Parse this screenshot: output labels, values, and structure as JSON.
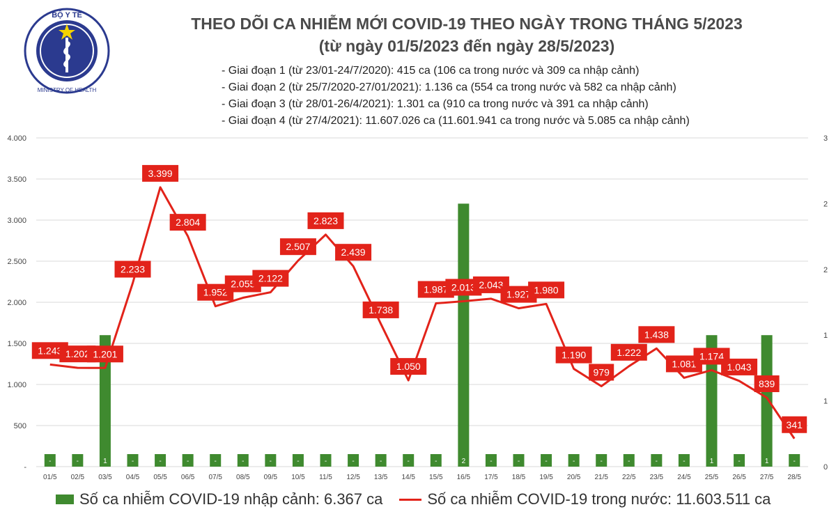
{
  "header": {
    "title_line1": "THEO DÕI CA NHIỄM MỚI COVID-19 THEO NGÀY TRONG THÁNG 5/2023",
    "title_line2": "(từ ngày 01/5/2023 đến ngày 28/5/2023)",
    "phases": [
      "- Giai đoạn 1 (từ 23/01-24/7/2020): 415 ca (106 ca trong nước và 309 ca nhập cảnh)",
      "- Giai đoạn 2 (từ 25/7/2020-27/01/2021): 1.136 ca (554 ca trong nước và 582 ca nhập cảnh)",
      "- Giai đoạn 3 (từ 28/01-26/4/2021): 1.301 ca (910 ca trong nước và 391 ca nhập cảnh)",
      "- Giai đoạn 4 (từ 27/4/2021): 11.607.026 ca (11.601.941 ca trong nước và 5.085 ca nhập cảnh)"
    ]
  },
  "logo": {
    "text_top": "BỘ Y TẾ",
    "text_bottom": "MINISTRY OF HEALTH",
    "colors": {
      "ring": "#2b3a8f",
      "star": "#f5d300",
      "flag": "#e2231a"
    }
  },
  "legend": {
    "bar_label": "Số ca nhiễm COVID-19 nhập cảnh: 6.367 ca",
    "line_label": "Số ca nhiễm COVID-19 trong nước: 11.603.511 ca"
  },
  "chart_data": {
    "type": "bar+line",
    "categories": [
      "01/5",
      "02/5",
      "03/5",
      "04/5",
      "05/5",
      "06/5",
      "07/5",
      "08/5",
      "09/5",
      "10/5",
      "11/5",
      "12/5",
      "13/5",
      "14/5",
      "15/5",
      "16/5",
      "17/5",
      "18/5",
      "19/5",
      "20/5",
      "21/5",
      "22/5",
      "23/5",
      "24/5",
      "25/5",
      "26/5",
      "27/5",
      "28/5"
    ],
    "series": [
      {
        "name": "Số ca nhiễm COVID-19 nhập cảnh",
        "type": "bar",
        "axis": "right",
        "values": [
          0,
          0,
          1,
          0,
          0,
          0,
          0,
          0,
          0,
          0,
          0,
          0,
          0,
          0,
          0,
          2,
          0,
          0,
          0,
          0,
          0,
          0,
          0,
          0,
          1,
          0,
          1,
          0
        ],
        "labels": [
          "-",
          "-",
          "1",
          "-",
          "-",
          "-",
          "-",
          "-",
          "-",
          "-",
          "-",
          "-",
          "-",
          "-",
          "-",
          "2",
          "-",
          "-",
          "-",
          "-",
          "-",
          "-",
          "-",
          "-",
          "1",
          "-",
          "1",
          "-"
        ]
      },
      {
        "name": "Số ca nhiễm COVID-19 trong nước",
        "type": "line",
        "axis": "left",
        "values": [
          1243,
          1202,
          1201,
          2233,
          3399,
          2804,
          1952,
          2055,
          2122,
          2507,
          2823,
          2439,
          1738,
          1050,
          1987,
          2013,
          2043,
          1927,
          1980,
          1190,
          979,
          1222,
          1438,
          1081,
          1174,
          1043,
          839,
          341
        ],
        "labels": [
          "1.243",
          "1.202",
          "1.201",
          "2.233",
          "3.399",
          "2.804",
          "1.952",
          "2.055",
          "2.122",
          "2.507",
          "2.823",
          "2.439",
          "1.738",
          "1.050",
          "1.987",
          "2.013",
          "2.043",
          "1.927",
          "1.980",
          "1.190",
          "979",
          "1.222",
          "1.438",
          "1.081",
          "1.174",
          "1.043",
          "839",
          "341"
        ]
      }
    ],
    "left_axis": {
      "ylim": [
        0,
        4000
      ],
      "ticks": [
        "-",
        "500",
        "1.000",
        "1.500",
        "2.000",
        "2.500",
        "3.000",
        "3.500",
        "4.000"
      ]
    },
    "right_axis": {
      "ylim": [
        0,
        2.5
      ],
      "ticks": [
        "0",
        "1",
        "1",
        "2",
        "2",
        "3"
      ]
    },
    "colors": {
      "bar": "#3f8a2f",
      "line": "#e2231a",
      "label_bg": "#e2231a",
      "label_text": "#ffffff",
      "grid": "#d9d9d9"
    },
    "grid": true,
    "legend_position": "bottom"
  }
}
